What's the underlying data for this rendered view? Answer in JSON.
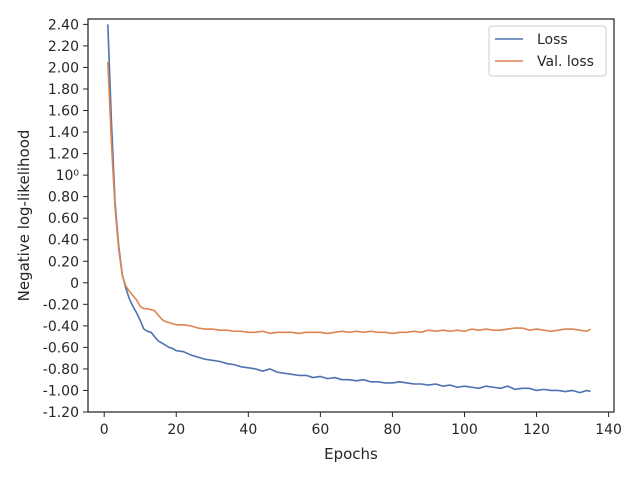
{
  "chart_data": {
    "type": "line",
    "xlabel": "Epochs",
    "ylabel": "Negative log-likelihood",
    "xlim": [
      -4.5,
      141.5
    ],
    "ylim": [
      -1.2,
      2.45
    ],
    "x_ticks": [
      0,
      20,
      40,
      60,
      80,
      100,
      120,
      140
    ],
    "x_tick_labels": [
      "0",
      "20",
      "40",
      "60",
      "80",
      "100",
      "120",
      "140"
    ],
    "y_ticks": [
      2.4,
      2.2,
      2.0,
      1.8,
      1.6,
      1.4,
      1.2,
      1.0,
      0.8,
      0.6,
      0.4,
      0.2,
      0,
      -0.2,
      -0.4,
      -0.6,
      -0.8,
      -1.0,
      -1.2
    ],
    "y_tick_labels": [
      "2.40",
      "2.20",
      "2.00",
      "1.80",
      "1.60",
      "1.40",
      "1.20",
      "10⁰",
      "0.80",
      "0.60",
      "0.40",
      "0.20",
      "0",
      "-0.20",
      "-0.40",
      "-0.60",
      "-0.80",
      "-1.00",
      "-1.20"
    ],
    "grid": false,
    "legend_position": "top-right",
    "series": [
      {
        "name": "Loss",
        "color": "#4c72b0",
        "x": [
          1,
          2,
          3,
          4,
          5,
          6,
          7,
          8,
          9,
          10,
          11,
          12,
          13,
          14,
          15,
          16,
          17,
          18,
          19,
          20,
          22,
          24,
          26,
          28,
          30,
          32,
          34,
          36,
          38,
          40,
          42,
          44,
          46,
          48,
          50,
          52,
          54,
          56,
          58,
          60,
          62,
          64,
          66,
          68,
          70,
          72,
          74,
          76,
          78,
          80,
          82,
          84,
          86,
          88,
          90,
          92,
          94,
          96,
          98,
          100,
          102,
          104,
          106,
          108,
          110,
          112,
          114,
          116,
          118,
          120,
          122,
          124,
          126,
          128,
          130,
          132,
          134,
          135
        ],
        "values": [
          2.4,
          1.5,
          0.75,
          0.35,
          0.08,
          -0.05,
          -0.15,
          -0.22,
          -0.28,
          -0.35,
          -0.43,
          -0.45,
          -0.46,
          -0.5,
          -0.54,
          -0.56,
          -0.58,
          -0.6,
          -0.61,
          -0.63,
          -0.64,
          -0.67,
          -0.69,
          -0.71,
          -0.72,
          -0.73,
          -0.75,
          -0.76,
          -0.78,
          -0.79,
          -0.8,
          -0.82,
          -0.8,
          -0.83,
          -0.84,
          -0.85,
          -0.86,
          -0.86,
          -0.88,
          -0.87,
          -0.89,
          -0.88,
          -0.9,
          -0.9,
          -0.91,
          -0.9,
          -0.92,
          -0.92,
          -0.93,
          -0.93,
          -0.92,
          -0.93,
          -0.94,
          -0.94,
          -0.95,
          -0.94,
          -0.96,
          -0.95,
          -0.97,
          -0.96,
          -0.97,
          -0.98,
          -0.96,
          -0.97,
          -0.98,
          -0.96,
          -0.99,
          -0.98,
          -0.98,
          -1.0,
          -0.99,
          -1.0,
          -1.0,
          -1.01,
          -1.0,
          -1.02,
          -1.0,
          -1.01
        ]
      },
      {
        "name": "Val. loss",
        "color": "#dd8452",
        "x": [
          1,
          2,
          3,
          4,
          5,
          6,
          7,
          8,
          9,
          10,
          11,
          12,
          13,
          14,
          15,
          16,
          17,
          18,
          19,
          20,
          22,
          24,
          26,
          28,
          30,
          32,
          34,
          36,
          38,
          40,
          42,
          44,
          46,
          48,
          50,
          52,
          54,
          56,
          58,
          60,
          62,
          64,
          66,
          68,
          70,
          72,
          74,
          76,
          78,
          80,
          82,
          84,
          86,
          88,
          90,
          92,
          94,
          96,
          98,
          100,
          102,
          104,
          106,
          108,
          110,
          112,
          114,
          116,
          118,
          120,
          122,
          124,
          126,
          128,
          130,
          132,
          134,
          135
        ],
        "values": [
          2.05,
          1.3,
          0.7,
          0.32,
          0.07,
          -0.03,
          -0.08,
          -0.12,
          -0.16,
          -0.22,
          -0.24,
          -0.24,
          -0.25,
          -0.26,
          -0.3,
          -0.34,
          -0.36,
          -0.37,
          -0.38,
          -0.39,
          -0.39,
          -0.4,
          -0.42,
          -0.43,
          -0.43,
          -0.44,
          -0.44,
          -0.45,
          -0.45,
          -0.46,
          -0.46,
          -0.45,
          -0.47,
          -0.46,
          -0.46,
          -0.46,
          -0.47,
          -0.46,
          -0.46,
          -0.46,
          -0.47,
          -0.46,
          -0.45,
          -0.46,
          -0.45,
          -0.46,
          -0.45,
          -0.46,
          -0.46,
          -0.47,
          -0.46,
          -0.46,
          -0.45,
          -0.46,
          -0.44,
          -0.45,
          -0.44,
          -0.45,
          -0.44,
          -0.45,
          -0.43,
          -0.44,
          -0.43,
          -0.44,
          -0.44,
          -0.43,
          -0.42,
          -0.42,
          -0.44,
          -0.43,
          -0.44,
          -0.45,
          -0.44,
          -0.43,
          -0.43,
          -0.44,
          -0.45,
          -0.43
        ]
      }
    ]
  }
}
